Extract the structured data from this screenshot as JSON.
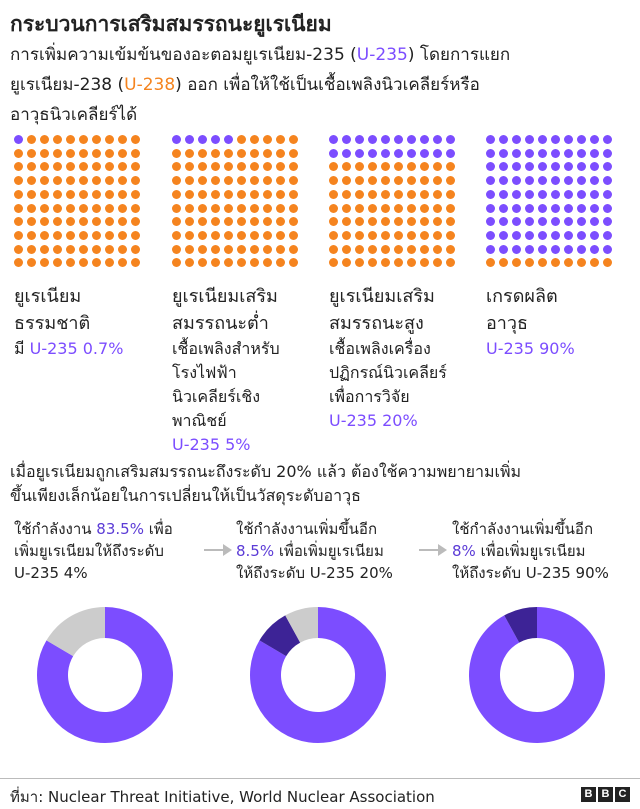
{
  "title": "กระบวนการเสริมสมรรถนะยูเรเนียม",
  "subtitle": {
    "part1": "การเพิ่มความเข้มข้นของอะตอมยูเรเนียม-235 (",
    "u235": "U-235",
    "part2": ") โดยการแยก",
    "part3": "ยูเรเนียม-238 (",
    "u238": "U-238",
    "part4": ") ออก เพื่อให้ใช้เป็นเชื้อเพลิงนิวเคลียร์หรือ",
    "part5": "อาวุธนิวเคลียร์ได้"
  },
  "colors": {
    "u235": "#7c4dff",
    "u238": "#f5841f",
    "gray": "#cccccc",
    "dark": "#3d2396"
  },
  "grades": [
    {
      "name1": "ยูเรเนียม",
      "name2": "ธรรมชาติ",
      "notes": [],
      "pct_prefix": "มี ",
      "pct": "U-235 0.7%",
      "u235_dots": 1
    },
    {
      "name1": "ยูเรเนียมเสริม",
      "name2": "สมรรถนะต่ำ",
      "notes": [
        "เชื้อเพลิงสำหรับ",
        "โรงไฟฟ้า",
        "นิวเคลียร์เชิง",
        "พาณิชย์"
      ],
      "pct_prefix": "",
      "pct": "U-235 5%",
      "u235_dots": 5
    },
    {
      "name1": "ยูเรเนียมเสริม",
      "name2": "สมรรถนะสูง",
      "notes": [
        "เชื้อเพลิงเครื่อง",
        "ปฏิกรณ์นิวเคลียร์",
        "เพื่อการวิจัย"
      ],
      "pct_prefix": "",
      "pct": "U-235 20%",
      "u235_dots": 20
    },
    {
      "name1": "เกรดผลิต",
      "name2": "อาวุธ",
      "notes": [],
      "pct_prefix": "",
      "pct": "U-235 90%",
      "u235_dots": 90
    }
  ],
  "middle_text": {
    "line1": "เมื่อยูเรเนียมถูกเสริมสมรรถนะถึงระดับ 20% แล้ว ต้องใช้ความพยายามเพิ่ม",
    "line2": "ขึ้นเพียงเล็กน้อยในการเปลี่ยนให้เป็นวัสดุระดับอาวุธ"
  },
  "steps": [
    {
      "line1_a": "ใช้กำลังงาน ",
      "value": "83.5%",
      "line1_b": " เพื่อ",
      "line2": "เพิ่มยูเรเนียมให้ถึงระดับ",
      "line3": "U-235 4%"
    },
    {
      "line1_a": "ใช้กำลังงานเพิ่มขึ้นอีก",
      "value": "8.5%",
      "line1_b": " เพื่อเพิ่มยูเรเนียม",
      "line2": "ให้ถึงระดับ U-235 20%",
      "line3": ""
    },
    {
      "line1_a": "ใช้กำลังงานเพิ่มขึ้นอีก",
      "value": "8%",
      "line1_b": " เพื่อเพิ่มยูเรเนียม",
      "line2": "ให้ถึงระดับ U-235 90%",
      "line3": ""
    }
  ],
  "chart_data": [
    {
      "type": "pie",
      "values": [
        {
          "label": "previous",
          "value": 0
        },
        {
          "label": "step",
          "value": 83.5
        },
        {
          "label": "remaining",
          "value": 16.5
        }
      ]
    },
    {
      "type": "pie",
      "values": [
        {
          "label": "previous",
          "value": 83.5
        },
        {
          "label": "step",
          "value": 8.5
        },
        {
          "label": "remaining",
          "value": 8
        }
      ]
    },
    {
      "type": "pie",
      "values": [
        {
          "label": "previous",
          "value": 92
        },
        {
          "label": "step",
          "value": 8
        },
        {
          "label": "remaining",
          "value": 0
        }
      ]
    }
  ],
  "footer": {
    "source": "ที่มา: Nuclear Threat Initiative, World Nuclear Association",
    "logo": [
      "B",
      "B",
      "C"
    ]
  }
}
